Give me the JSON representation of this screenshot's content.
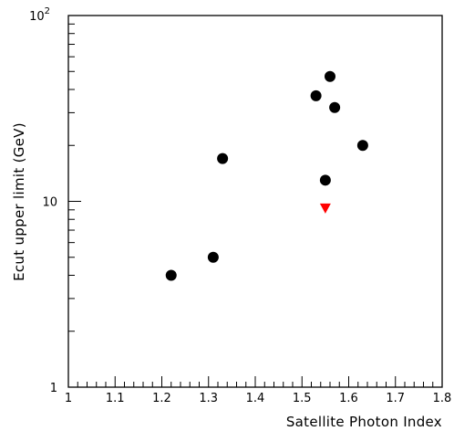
{
  "chart_data": {
    "type": "scatter",
    "title": "",
    "xlabel": "Satellite Photon Index",
    "ylabel": "Ecut upper limit (GeV)",
    "xlim": [
      1.0,
      1.8
    ],
    "ylim": [
      1,
      100
    ],
    "yscale": "log",
    "grid": false,
    "x_ticks": [
      "1",
      "1.1",
      "1.2",
      "1.3",
      "1.4",
      "1.5",
      "1.6",
      "1.7",
      "1.8"
    ],
    "y_ticks": [
      {
        "value": 1,
        "base": "1",
        "exp": ""
      },
      {
        "value": 10,
        "base": "10",
        "exp": ""
      },
      {
        "value": 100,
        "base": "10",
        "exp": "2"
      }
    ],
    "series": [
      {
        "marker": "circle",
        "color": "#000000",
        "points": [
          {
            "x": 1.22,
            "y": 4.0
          },
          {
            "x": 1.31,
            "y": 5.0
          },
          {
            "x": 1.33,
            "y": 17.0
          },
          {
            "x": 1.53,
            "y": 37.0
          },
          {
            "x": 1.56,
            "y": 47.0
          },
          {
            "x": 1.57,
            "y": 32.0
          },
          {
            "x": 1.55,
            "y": 13.0
          },
          {
            "x": 1.63,
            "y": 20.0
          }
        ]
      },
      {
        "marker": "triangle-down",
        "color": "#ff0000",
        "points": [
          {
            "x": 1.55,
            "y": 9.2
          }
        ]
      }
    ]
  }
}
